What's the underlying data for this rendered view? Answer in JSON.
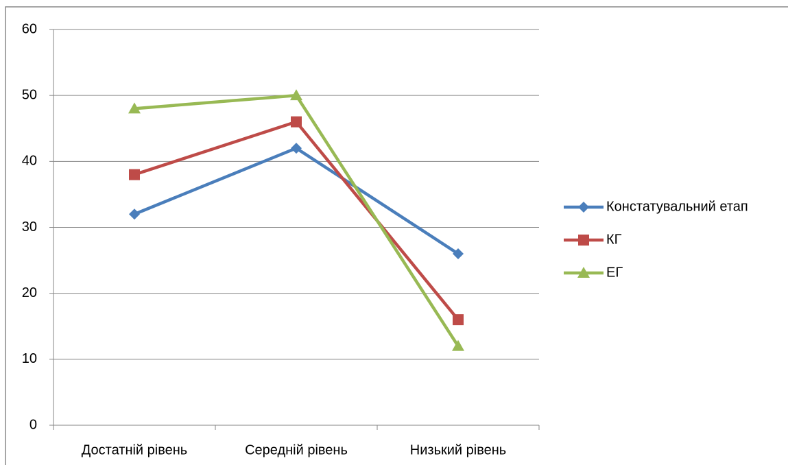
{
  "chart_data": {
    "type": "line",
    "categories": [
      "Достатній рівень",
      "Середній рівень",
      "Низький рівень"
    ],
    "series": [
      {
        "name": "Констатувальний етап",
        "color": "#4a7ebb",
        "marker": "diamond",
        "values": [
          32,
          42,
          26
        ]
      },
      {
        "name": "КГ",
        "color": "#be4b48",
        "marker": "square",
        "values": [
          38,
          46,
          16
        ]
      },
      {
        "name": "ЕГ",
        "color": "#98b954",
        "marker": "triangle",
        "values": [
          48,
          50,
          12
        ]
      }
    ],
    "ylim": [
      0,
      60
    ],
    "yticks": [
      0,
      10,
      20,
      30,
      40,
      50,
      60
    ],
    "grid": true,
    "legend": "right"
  }
}
